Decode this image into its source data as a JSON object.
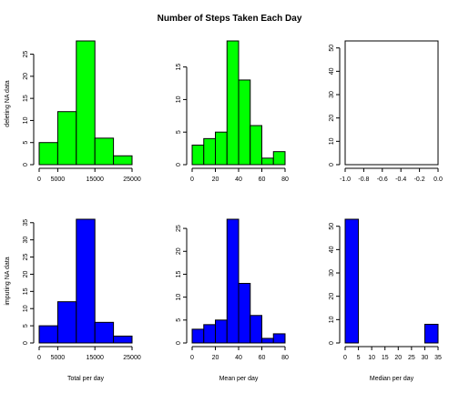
{
  "title": "Number of Steps Taken Each Day",
  "row_labels": [
    "deleting NA data",
    "imputing NA data"
  ],
  "colors": {
    "top": "#00ff00",
    "bottom": "#0000ff",
    "stroke": "#000000"
  },
  "chart_data": [
    {
      "type": "bar",
      "panel": "top-left",
      "series": "deleting NA data",
      "xlabel": "",
      "bins": [
        [
          0,
          5000
        ],
        [
          5000,
          10000
        ],
        [
          10000,
          15000
        ],
        [
          15000,
          20000
        ],
        [
          20000,
          25000
        ]
      ],
      "values": [
        5,
        12,
        28,
        6,
        2
      ],
      "xlim": [
        0,
        25000
      ],
      "ylim": [
        0,
        28
      ],
      "xticks": [
        0,
        5000,
        15000,
        25000
      ],
      "yticks": [
        0,
        5,
        10,
        15,
        20,
        25
      ]
    },
    {
      "type": "bar",
      "panel": "top-middle",
      "series": "deleting NA data",
      "xlabel": "",
      "bins": [
        [
          0,
          10
        ],
        [
          10,
          20
        ],
        [
          20,
          30
        ],
        [
          30,
          40
        ],
        [
          40,
          50
        ],
        [
          50,
          60
        ],
        [
          60,
          70
        ],
        [
          70,
          80
        ]
      ],
      "values": [
        3,
        4,
        5,
        19,
        13,
        6,
        1,
        2
      ],
      "xlim": [
        0,
        80
      ],
      "ylim": [
        0,
        19
      ],
      "xticks": [
        0,
        20,
        40,
        60,
        80
      ],
      "yticks": [
        0,
        5,
        10,
        15
      ]
    },
    {
      "type": "bar",
      "panel": "top-right",
      "series": "deleting NA data",
      "xlabel": "",
      "bins": [],
      "values": [],
      "xlim": [
        -1.0,
        0.0
      ],
      "ylim": [
        0,
        53
      ],
      "xticks": [
        -1.0,
        -0.8,
        -0.6,
        -0.4,
        -0.2,
        0.0
      ],
      "yticks": [
        0,
        10,
        20,
        30,
        40,
        50
      ]
    },
    {
      "type": "bar",
      "panel": "bottom-left",
      "series": "imputing NA data",
      "xlabel": "Total per day",
      "bins": [
        [
          0,
          5000
        ],
        [
          5000,
          10000
        ],
        [
          10000,
          15000
        ],
        [
          15000,
          20000
        ],
        [
          20000,
          25000
        ]
      ],
      "values": [
        5,
        12,
        36,
        6,
        2
      ],
      "xlim": [
        0,
        25000
      ],
      "ylim": [
        0,
        36
      ],
      "xticks": [
        0,
        5000,
        15000,
        25000
      ],
      "yticks": [
        0,
        5,
        10,
        15,
        20,
        25,
        30,
        35
      ]
    },
    {
      "type": "bar",
      "panel": "bottom-middle",
      "series": "imputing NA data",
      "xlabel": "Mean per day",
      "bins": [
        [
          0,
          10
        ],
        [
          10,
          20
        ],
        [
          20,
          30
        ],
        [
          30,
          40
        ],
        [
          40,
          50
        ],
        [
          50,
          60
        ],
        [
          60,
          70
        ],
        [
          70,
          80
        ]
      ],
      "values": [
        3,
        4,
        5,
        27,
        13,
        6,
        1,
        2
      ],
      "xlim": [
        0,
        80
      ],
      "ylim": [
        0,
        27
      ],
      "xticks": [
        0,
        20,
        40,
        60,
        80
      ],
      "yticks": [
        0,
        5,
        10,
        15,
        20,
        25
      ]
    },
    {
      "type": "bar",
      "panel": "bottom-right",
      "series": "imputing NA data",
      "xlabel": "Median per day",
      "bins": [
        [
          0,
          5
        ],
        [
          5,
          10
        ],
        [
          10,
          15
        ],
        [
          15,
          20
        ],
        [
          20,
          25
        ],
        [
          25,
          30
        ],
        [
          30,
          35
        ]
      ],
      "values": [
        53,
        0,
        0,
        0,
        0,
        0,
        8
      ],
      "xlim": [
        0,
        35
      ],
      "ylim": [
        0,
        53
      ],
      "xticks": [
        0,
        5,
        10,
        15,
        20,
        25,
        30,
        35
      ],
      "yticks": [
        0,
        10,
        20,
        30,
        40,
        50
      ]
    }
  ]
}
